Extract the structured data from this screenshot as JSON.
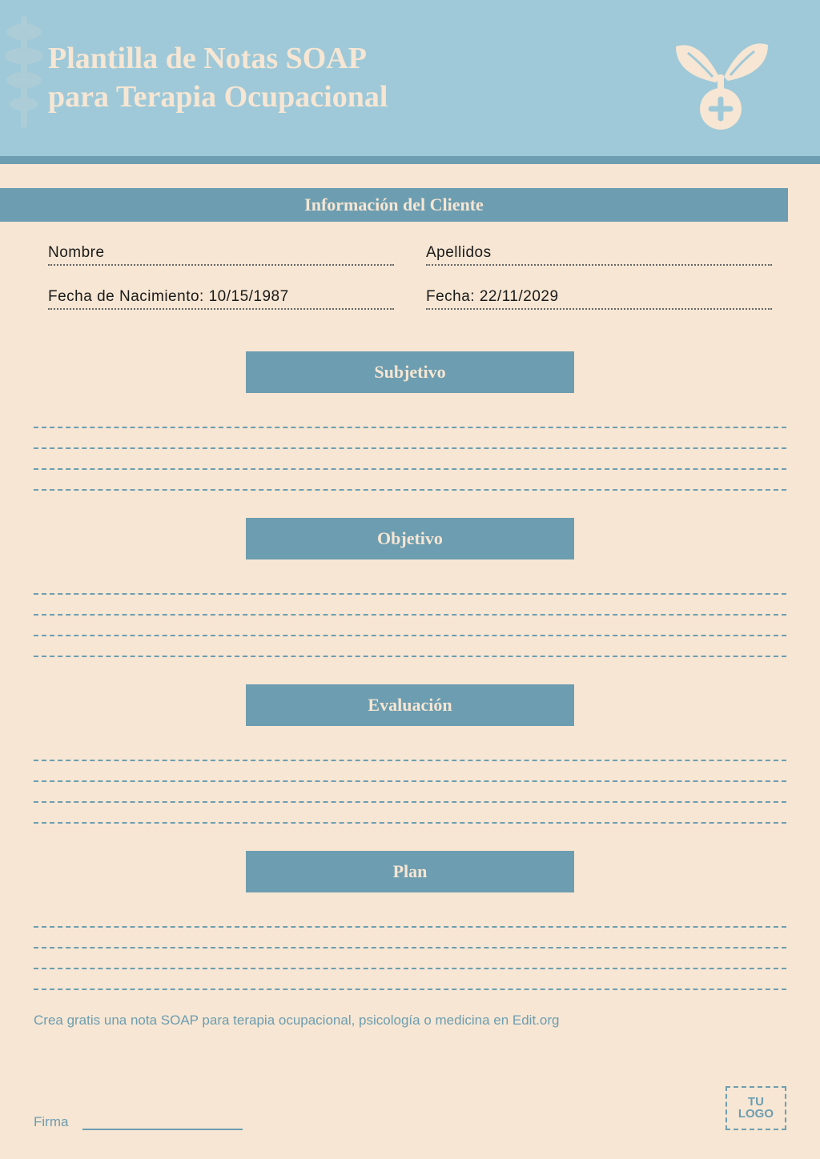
{
  "colors": {
    "header_bg": "#9fc9d8",
    "accent": "#6d9db0",
    "page_bg": "#f6e6d3",
    "text": "#1a1a1a"
  },
  "typography": {
    "title_fontsize": 38,
    "section_fontsize": 22,
    "body_fontsize": 19,
    "footnote_fontsize": 17
  },
  "header": {
    "title": "Plantilla de Notas SOAP para Terapia Ocupacional",
    "icon": "plant-plus-icon"
  },
  "client_info": {
    "bar_label": "Información del Cliente",
    "fields": {
      "name_label": "Nombre",
      "surname_label": "Apellidos",
      "dob_label": "Fecha de Nacimiento: 10/15/1987",
      "date_label": "Fecha: 22/11/2029"
    }
  },
  "sections": [
    {
      "label": "Subjetivo",
      "line_count": 4
    },
    {
      "label": "Objetivo",
      "line_count": 4
    },
    {
      "label": "Evaluación",
      "line_count": 4
    },
    {
      "label": "Plan",
      "line_count": 4
    }
  ],
  "footnote": "Crea gratis una nota SOAP para terapia ocupacional, psicología o medicina en Edit.org",
  "footer": {
    "sign_label": "Firma",
    "logo_line1": "TU",
    "logo_line2": "LOGO"
  }
}
